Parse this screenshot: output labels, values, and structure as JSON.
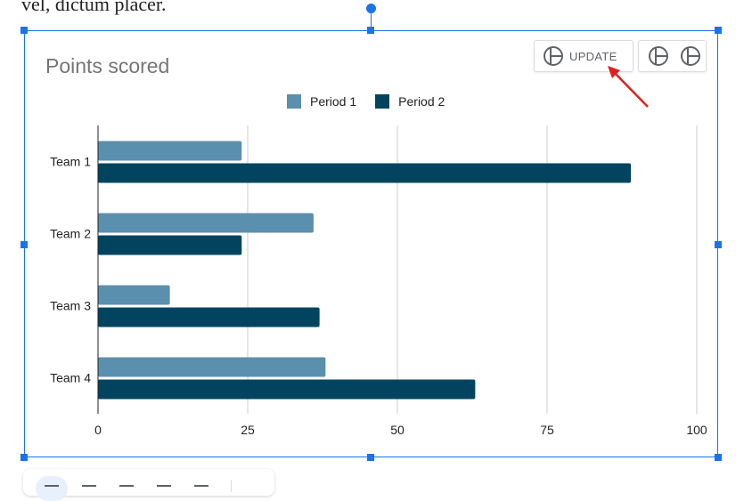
{
  "document": {
    "visible_text": "vel, dictum placer."
  },
  "chart_toolbar": {
    "update_label": "UPDATE"
  },
  "chart_data": {
    "type": "bar",
    "orientation": "horizontal",
    "title": "Points scored",
    "categories": [
      "Team 1",
      "Team 2",
      "Team 3",
      "Team 4"
    ],
    "series": [
      {
        "name": "Period 1",
        "color": "#5b8fae",
        "values": [
          24,
          36,
          12,
          38
        ]
      },
      {
        "name": "Period 2",
        "color": "#02445f",
        "values": [
          89,
          24,
          37,
          63
        ]
      }
    ],
    "xlim": [
      0,
      100
    ],
    "x_ticks": [
      0,
      25,
      50,
      75,
      100
    ],
    "gridlines": true,
    "legend_position": "top"
  },
  "colors": {
    "selection": "#1a73e8",
    "annotation_arrow": "#e02020"
  }
}
